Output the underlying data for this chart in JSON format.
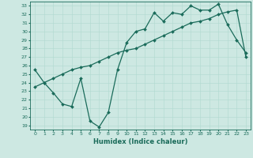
{
  "xlabel": "Humidex (Indice chaleur)",
  "bg_color": "#cde8e2",
  "line_color": "#1a6b5a",
  "grid_color": "#b0d8d0",
  "xlim": [
    -0.5,
    23.5
  ],
  "ylim": [
    18.5,
    33.5
  ],
  "xticks": [
    0,
    1,
    2,
    3,
    4,
    5,
    6,
    7,
    8,
    9,
    10,
    11,
    12,
    13,
    14,
    15,
    16,
    17,
    18,
    19,
    20,
    21,
    22,
    23
  ],
  "yticks": [
    19,
    20,
    21,
    22,
    23,
    24,
    25,
    26,
    27,
    28,
    29,
    30,
    31,
    32,
    33
  ],
  "line1_x": [
    0,
    1,
    2,
    3,
    4,
    5,
    6,
    7,
    8,
    9,
    10,
    11,
    12,
    13,
    14,
    15,
    16,
    17,
    18,
    19,
    20,
    21,
    22,
    23
  ],
  "line1_y": [
    25.5,
    24.0,
    22.8,
    21.5,
    21.2,
    24.5,
    19.5,
    18.8,
    20.5,
    25.5,
    28.7,
    30.0,
    30.3,
    32.2,
    31.2,
    32.2,
    32.0,
    33.0,
    32.5,
    32.5,
    33.2,
    30.8,
    29.0,
    27.5
  ],
  "line2_x": [
    0,
    1,
    2,
    3,
    4,
    5,
    6,
    7,
    8,
    9,
    10,
    11,
    12,
    13,
    14,
    15,
    16,
    17,
    18,
    19,
    20,
    21,
    22,
    23
  ],
  "line2_y": [
    23.5,
    24.0,
    24.5,
    25.0,
    25.5,
    25.8,
    26.0,
    26.5,
    27.0,
    27.5,
    27.8,
    28.0,
    28.5,
    29.0,
    29.5,
    30.0,
    30.5,
    31.0,
    31.2,
    31.5,
    32.0,
    32.3,
    32.5,
    27.0
  ],
  "marker": "D",
  "marker_size": 2.0,
  "linewidth": 0.9,
  "tick_fontsize": 4.5,
  "label_fontsize": 6.0
}
